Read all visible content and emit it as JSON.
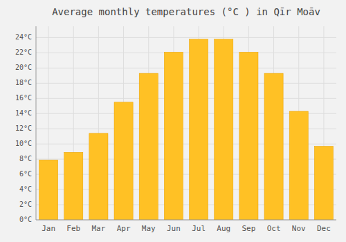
{
  "chart_data": {
    "type": "bar",
    "title": "Average monthly temperatures (°C ) in Qīr Moāv",
    "categories": [
      "Jan",
      "Feb",
      "Mar",
      "Apr",
      "May",
      "Jun",
      "Jul",
      "Aug",
      "Sep",
      "Oct",
      "Nov",
      "Dec"
    ],
    "values": [
      7.9,
      8.9,
      11.4,
      15.5,
      19.3,
      22.1,
      23.8,
      23.8,
      22.1,
      19.3,
      14.3,
      9.7
    ],
    "color": "#FFC125",
    "ylim": [
      0,
      25.5
    ],
    "yticks": [
      {
        "value": 0,
        "label": "0°C"
      },
      {
        "value": 2,
        "label": "2°C"
      },
      {
        "value": 4,
        "label": "4°C"
      },
      {
        "value": 6,
        "label": "6°C"
      },
      {
        "value": 8,
        "label": "8°C"
      },
      {
        "value": 10,
        "label": "10°C"
      },
      {
        "value": 12,
        "label": "12°C"
      },
      {
        "value": 14,
        "label": "14°C"
      },
      {
        "value": 16,
        "label": "16°C"
      },
      {
        "value": 18,
        "label": "18°C"
      },
      {
        "value": 20,
        "label": "20°C"
      },
      {
        "value": 22,
        "label": "22°C"
      },
      {
        "value": 24,
        "label": "24°C"
      }
    ],
    "grid": true
  }
}
